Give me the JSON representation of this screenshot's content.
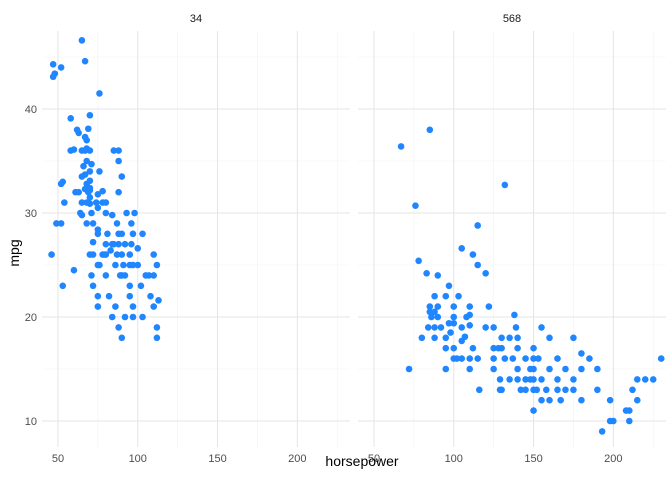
{
  "chart_data": {
    "type": "scatter",
    "xlabel": "horsepower",
    "ylabel": "mpg",
    "xlim": [
      40,
      233
    ],
    "ylim": [
      7.5,
      47.5
    ],
    "x_ticks": [
      50,
      100,
      150,
      200
    ],
    "y_ticks": [
      10,
      20,
      30,
      40
    ],
    "grid": true,
    "point_color": "#1f86ff",
    "panels": [
      {
        "label": "34",
        "points": [
          [
            46,
            26
          ],
          [
            47,
            43.1
          ],
          [
            47,
            44.3
          ],
          [
            48,
            43.4
          ],
          [
            49,
            29
          ],
          [
            52,
            32.8
          ],
          [
            52,
            29
          ],
          [
            52,
            44
          ],
          [
            53,
            33
          ],
          [
            53,
            23
          ],
          [
            54,
            31
          ],
          [
            58,
            36
          ],
          [
            58,
            39.1
          ],
          [
            60,
            36.1
          ],
          [
            60,
            24.5
          ],
          [
            61,
            32
          ],
          [
            62,
            38
          ],
          [
            63,
            37.7
          ],
          [
            64,
            30
          ],
          [
            65,
            31
          ],
          [
            65,
            29.8
          ],
          [
            65,
            33.5
          ],
          [
            65,
            36
          ],
          [
            65,
            46.6
          ],
          [
            66,
            34.5
          ],
          [
            67,
            32.3
          ],
          [
            67,
            44.6
          ],
          [
            67,
            37.3
          ],
          [
            67,
            33.7
          ],
          [
            68,
            31
          ],
          [
            68,
            32.8
          ],
          [
            68,
            35
          ],
          [
            68,
            29
          ],
          [
            68,
            37
          ],
          [
            69,
            32
          ],
          [
            69,
            38.1
          ],
          [
            70,
            32.2
          ],
          [
            70,
            34
          ],
          [
            70,
            36
          ],
          [
            70,
            26
          ],
          [
            70,
            30.9
          ],
          [
            70,
            32.4
          ],
          [
            70,
            33.1
          ],
          [
            70,
            39.4
          ],
          [
            71,
            34.7
          ],
          [
            71,
            30
          ],
          [
            71,
            24
          ],
          [
            72,
            27.2
          ],
          [
            72,
            26
          ],
          [
            72,
            29
          ],
          [
            74,
            31
          ],
          [
            75,
            31.8
          ],
          [
            75,
            28
          ],
          [
            75,
            28.4
          ],
          [
            75,
            30.5
          ],
          [
            75,
            22
          ],
          [
            76,
            25
          ],
          [
            76,
            41.5
          ],
          [
            78,
            32.1
          ],
          [
            78,
            31
          ],
          [
            78,
            26
          ],
          [
            79,
            26
          ],
          [
            80,
            27
          ],
          [
            80,
            26
          ],
          [
            80,
            30
          ],
          [
            81,
            28
          ],
          [
            83,
            26.4
          ],
          [
            84,
            27
          ],
          [
            85,
            27
          ],
          [
            86,
            25
          ],
          [
            87,
            29
          ],
          [
            87,
            26
          ],
          [
            88,
            27
          ],
          [
            88,
            28
          ],
          [
            88,
            36
          ],
          [
            89,
            24
          ],
          [
            90,
            24
          ],
          [
            90,
            26
          ],
          [
            90,
            28
          ],
          [
            90,
            33.5
          ],
          [
            91,
            25
          ],
          [
            92,
            24
          ],
          [
            92,
            27
          ],
          [
            93,
            30
          ],
          [
            95,
            23
          ],
          [
            95,
            25
          ],
          [
            95,
            26
          ],
          [
            96,
            29
          ],
          [
            96,
            27
          ],
          [
            97,
            21
          ],
          [
            97,
            25
          ],
          [
            97,
            28
          ],
          [
            98,
            30
          ],
          [
            100,
            26.6
          ],
          [
            100,
            25
          ],
          [
            103,
            28
          ],
          [
            105,
            24
          ],
          [
            107,
            24
          ],
          [
            108,
            22
          ],
          [
            110,
            26
          ],
          [
            110,
            24
          ],
          [
            112,
            25
          ],
          [
            113,
            21.6
          ],
          [
            85,
            36
          ],
          [
            88,
            35
          ],
          [
            67,
            36
          ],
          [
            68,
            36.2
          ],
          [
            84,
            29.8
          ],
          [
            76,
            34
          ],
          [
            75,
            21
          ],
          [
            72,
            23
          ],
          [
            75,
            25
          ],
          [
            80,
            31
          ],
          [
            80,
            24
          ],
          [
            82,
            22
          ],
          [
            84,
            20
          ],
          [
            86,
            21
          ],
          [
            88,
            19
          ],
          [
            90,
            18
          ],
          [
            92,
            20
          ],
          [
            95,
            22
          ],
          [
            97,
            20
          ],
          [
            102,
            23
          ],
          [
            103,
            20
          ],
          [
            110,
            21
          ],
          [
            112,
            19
          ],
          [
            112,
            18
          ],
          [
            88,
            32
          ],
          [
            70,
            31.5
          ],
          [
            63,
            32
          ]
        ]
      },
      {
        "label": "568",
        "points": [
          [
            67,
            36.4
          ],
          [
            72,
            15
          ],
          [
            76,
            30.7
          ],
          [
            78,
            25.4
          ],
          [
            80,
            18
          ],
          [
            83,
            24.2
          ],
          [
            84,
            19
          ],
          [
            85,
            38
          ],
          [
            85,
            21
          ],
          [
            85,
            20.5
          ],
          [
            86,
            20
          ],
          [
            88,
            22
          ],
          [
            88,
            20.5
          ],
          [
            88,
            18
          ],
          [
            88,
            19
          ],
          [
            90,
            24
          ],
          [
            90,
            20
          ],
          [
            90,
            21
          ],
          [
            92,
            19
          ],
          [
            95,
            18
          ],
          [
            95,
            22
          ],
          [
            95,
            15
          ],
          [
            95,
            17
          ],
          [
            97,
            19.4
          ],
          [
            97,
            23
          ],
          [
            98,
            18.5
          ],
          [
            100,
            21
          ],
          [
            100,
            20
          ],
          [
            100,
            19.4
          ],
          [
            100,
            16
          ],
          [
            100,
            17
          ],
          [
            102,
            16
          ],
          [
            103,
            22
          ],
          [
            105,
            26.6
          ],
          [
            105,
            17.7
          ],
          [
            105,
            16
          ],
          [
            105,
            19
          ],
          [
            107,
            18.1
          ],
          [
            108,
            20
          ],
          [
            110,
            20.2
          ],
          [
            110,
            21
          ],
          [
            110,
            19.2
          ],
          [
            110,
            16
          ],
          [
            110,
            15
          ],
          [
            112,
            26
          ],
          [
            112,
            17
          ],
          [
            115,
            25
          ],
          [
            115,
            28.8
          ],
          [
            115,
            16
          ],
          [
            116,
            13
          ],
          [
            120,
            24.2
          ],
          [
            120,
            19
          ],
          [
            122,
            21
          ],
          [
            125,
            19
          ],
          [
            125,
            16
          ],
          [
            125,
            17
          ],
          [
            125,
            15
          ],
          [
            129,
            14
          ],
          [
            129,
            13
          ],
          [
            130,
            17
          ],
          [
            130,
            13
          ],
          [
            132,
            32.7
          ],
          [
            132,
            16
          ],
          [
            135,
            14
          ],
          [
            135,
            18
          ],
          [
            137,
            16
          ],
          [
            138,
            20.2
          ],
          [
            139,
            19
          ],
          [
            140,
            15
          ],
          [
            140,
            18
          ],
          [
            140,
            14
          ],
          [
            140,
            17
          ],
          [
            142,
            13
          ],
          [
            145,
            16
          ],
          [
            145,
            14
          ],
          [
            145,
            13
          ],
          [
            148,
            15
          ],
          [
            148,
            14
          ],
          [
            150,
            17
          ],
          [
            150,
            16
          ],
          [
            150,
            14
          ],
          [
            150,
            13
          ],
          [
            150,
            15
          ],
          [
            150,
            11
          ],
          [
            152,
            13
          ],
          [
            153,
            16
          ],
          [
            155,
            12
          ],
          [
            155,
            14
          ],
          [
            155,
            19
          ],
          [
            158,
            13
          ],
          [
            160,
            12
          ],
          [
            160,
            15
          ],
          [
            165,
            16
          ],
          [
            165,
            14
          ],
          [
            165,
            13
          ],
          [
            167,
            12
          ],
          [
            170,
            15
          ],
          [
            170,
            13
          ],
          [
            175,
            13
          ],
          [
            175,
            14
          ],
          [
            180,
            16.5
          ],
          [
            180,
            15
          ],
          [
            180,
            12
          ],
          [
            190,
            13
          ],
          [
            190,
            15
          ],
          [
            193,
            9
          ],
          [
            198,
            10
          ],
          [
            198,
            12
          ],
          [
            200,
            10
          ],
          [
            208,
            11
          ],
          [
            210,
            11
          ],
          [
            212,
            13
          ],
          [
            215,
            14
          ],
          [
            215,
            12
          ],
          [
            220,
            14
          ],
          [
            225,
            14
          ],
          [
            230,
            16
          ],
          [
            210,
            10
          ],
          [
            185,
            16
          ],
          [
            175,
            18
          ],
          [
            160,
            18
          ],
          [
            130,
            18
          ],
          [
            128,
            17
          ]
        ]
      }
    ]
  }
}
